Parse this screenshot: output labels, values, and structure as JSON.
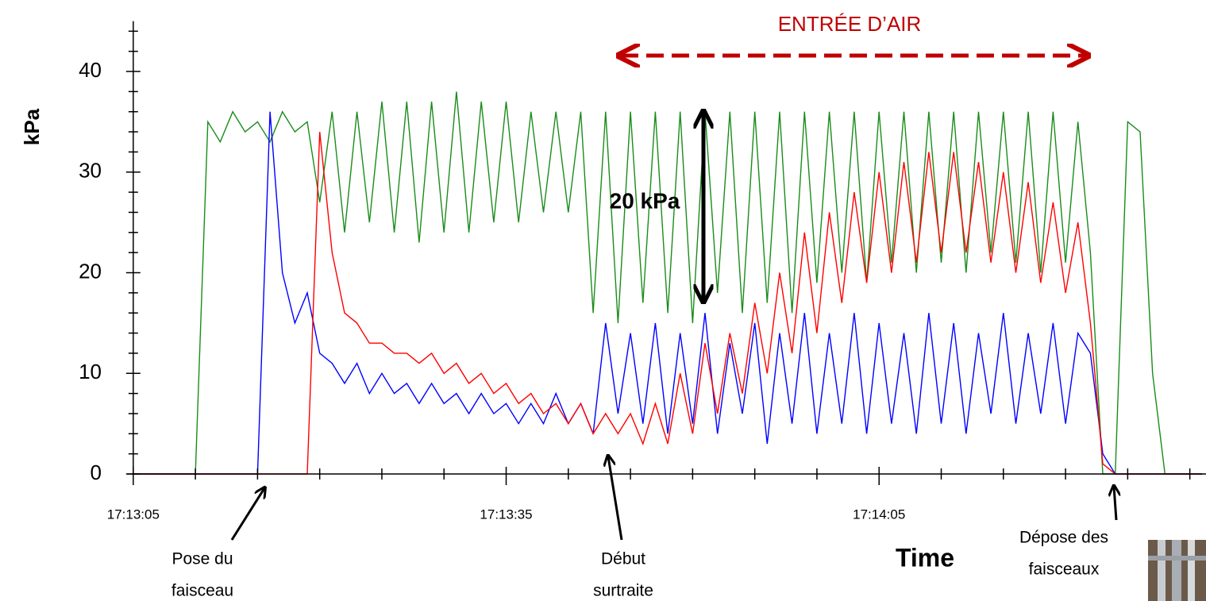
{
  "chart_data": {
    "type": "line",
    "y_label": "kPa",
    "x_label": "Time",
    "xlim": [
      -0.5,
      86.3
    ],
    "ylim": [
      0,
      45
    ],
    "xticks": [
      {
        "value": 0,
        "label": "17:13:05"
      },
      {
        "value": 30,
        "label": "17:13:35"
      },
      {
        "value": 60,
        "label": "17:14:05"
      }
    ],
    "minor_xticks": [
      5,
      10,
      15,
      20,
      25,
      35,
      40,
      45,
      50,
      55,
      65,
      70,
      75,
      80,
      85
    ],
    "yticks": [
      0,
      10,
      20,
      30,
      40
    ],
    "minor_yticks": [
      2,
      4,
      6,
      8,
      12,
      14,
      16,
      18,
      22,
      24,
      26,
      28,
      32,
      34,
      36,
      38,
      42,
      44
    ],
    "x": [
      0,
      1,
      2,
      3,
      4,
      5,
      6,
      7,
      8,
      9,
      10,
      11,
      12,
      13,
      14,
      15,
      16,
      17,
      18,
      19,
      20,
      21,
      22,
      23,
      24,
      25,
      26,
      27,
      28,
      29,
      30,
      31,
      32,
      33,
      34,
      35,
      36,
      37,
      38,
      39,
      40,
      41,
      42,
      43,
      44,
      45,
      46,
      47,
      48,
      49,
      50,
      51,
      52,
      53,
      54,
      55,
      56,
      57,
      58,
      59,
      60,
      61,
      62,
      63,
      64,
      65,
      66,
      67,
      68,
      69,
      70,
      71,
      72,
      73,
      74,
      75,
      76,
      77,
      78,
      79,
      80,
      81,
      82,
      83,
      84,
      85,
      86
    ],
    "series": [
      {
        "color": "#1a8c1a",
        "values": [
          0,
          0,
          0,
          0,
          0,
          0,
          35,
          33,
          36,
          34,
          35,
          33,
          36,
          34,
          35,
          27,
          36,
          24,
          36,
          25,
          37,
          24,
          37,
          23,
          37,
          24,
          38,
          24,
          37,
          25,
          37,
          25,
          36,
          26,
          36,
          26,
          36,
          16,
          36,
          15,
          36,
          17,
          36,
          16,
          36,
          15,
          36,
          18,
          36,
          16,
          36,
          17,
          36,
          16,
          36,
          19,
          36,
          20,
          36,
          19,
          36,
          21,
          36,
          20,
          36,
          21,
          36,
          20,
          36,
          22,
          36,
          21,
          36,
          20,
          36,
          21,
          35,
          22,
          0,
          0,
          35,
          34,
          10,
          0,
          0,
          0,
          0
        ]
      },
      {
        "color": "#0000ff",
        "values": [
          0,
          0,
          0,
          0,
          0,
          0,
          0,
          0,
          0,
          0,
          0,
          36,
          20,
          15,
          18,
          12,
          11,
          9,
          11,
          8,
          10,
          8,
          9,
          7,
          9,
          7,
          8,
          6,
          8,
          6,
          7,
          5,
          7,
          5,
          8,
          5,
          7,
          4,
          15,
          6,
          14,
          5,
          15,
          4,
          14,
          5,
          16,
          4,
          13,
          6,
          15,
          3,
          14,
          5,
          16,
          4,
          14,
          5,
          16,
          4,
          15,
          5,
          14,
          4,
          16,
          5,
          15,
          4,
          14,
          6,
          16,
          5,
          14,
          6,
          15,
          5,
          14,
          12,
          2,
          0,
          0,
          0,
          0,
          0,
          0,
          0,
          0
        ]
      },
      {
        "color": "#ff0000",
        "values": [
          0,
          0,
          0,
          0,
          0,
          0,
          0,
          0,
          0,
          0,
          0,
          0,
          0,
          0,
          0,
          34,
          22,
          16,
          15,
          13,
          13,
          12,
          12,
          11,
          12,
          10,
          11,
          9,
          10,
          8,
          9,
          7,
          8,
          6,
          7,
          5,
          7,
          4,
          6,
          4,
          6,
          3,
          7,
          3,
          10,
          4,
          13,
          6,
          14,
          8,
          17,
          10,
          20,
          12,
          24,
          14,
          26,
          17,
          28,
          19,
          30,
          20,
          31,
          21,
          32,
          22,
          32,
          22,
          31,
          21,
          30,
          20,
          29,
          19,
          27,
          18,
          25,
          15,
          1,
          0,
          0,
          0,
          0,
          0,
          0,
          0,
          0
        ]
      }
    ],
    "annotations": [
      {
        "lines": [
          "ENTRÉE D’AIR"
        ]
      },
      {
        "lines": [
          "20 kPa"
        ]
      },
      {
        "lines": [
          "Pose du",
          "faisceau"
        ]
      },
      {
        "lines": [
          "Début",
          "surtraite"
        ]
      },
      {
        "lines": [
          "Dépose des",
          "faisceaux"
        ]
      }
    ]
  }
}
